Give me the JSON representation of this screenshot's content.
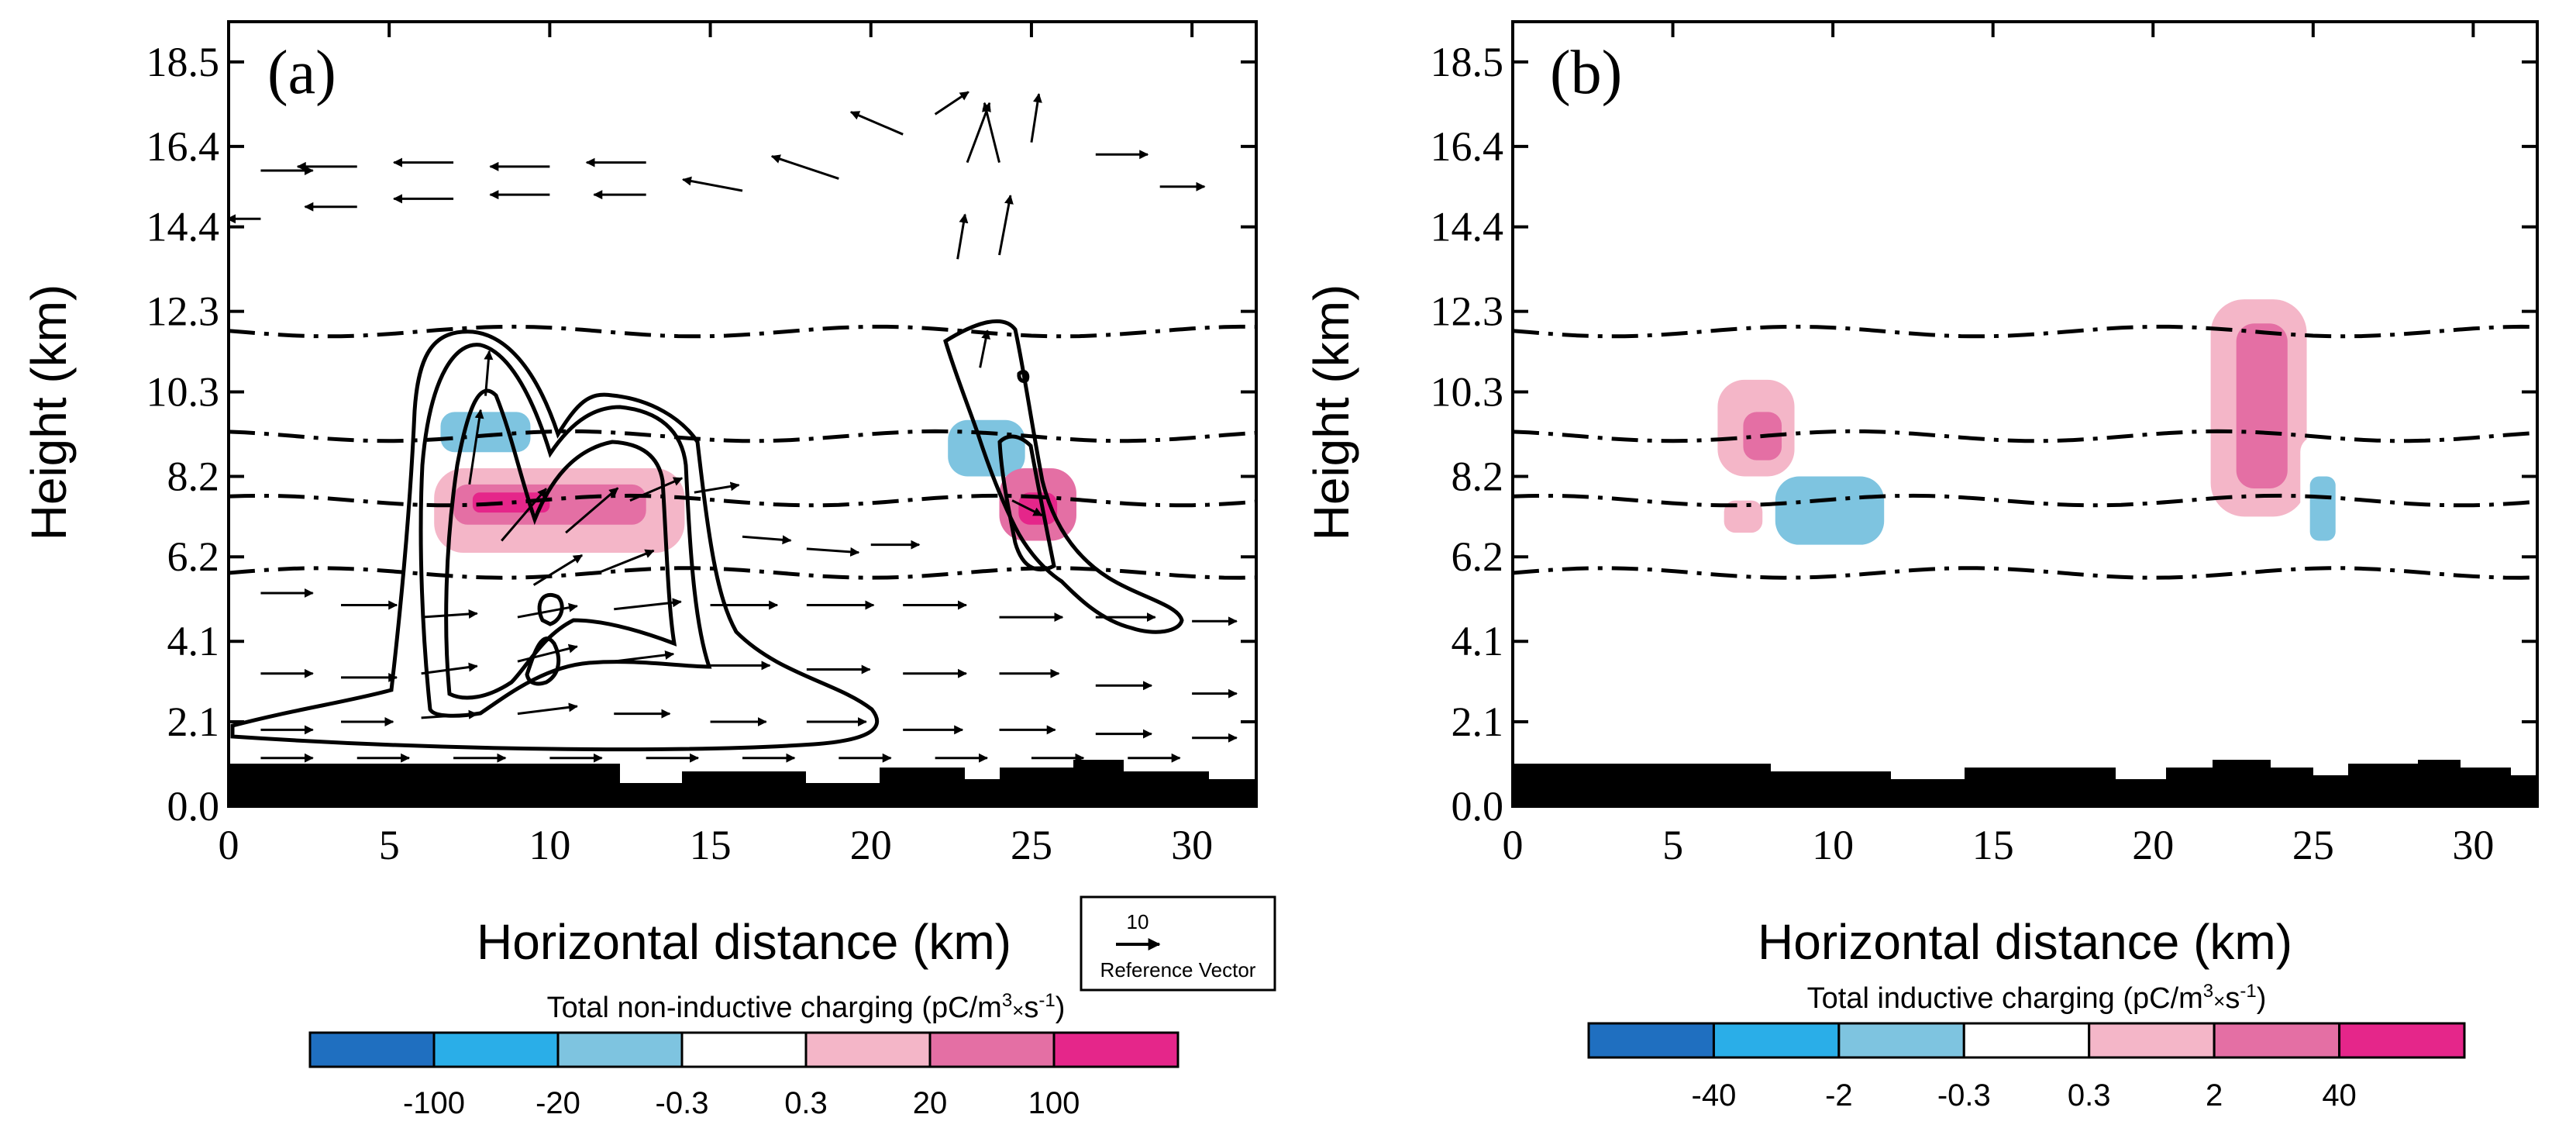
{
  "chart_data": [
    {
      "type": "contour",
      "panel_label": "(a)",
      "xlabel": "Horizontal distance (km)",
      "ylabel": "Height (km)",
      "xlim": [
        0,
        32
      ],
      "ylim": [
        0,
        19.5
      ],
      "x_ticks": [
        0,
        5,
        10,
        15,
        20,
        25,
        30
      ],
      "y_ticks": [
        0.0,
        2.1,
        4.1,
        6.2,
        8.2,
        10.3,
        12.3,
        14.4,
        16.4,
        18.5
      ],
      "y_tick_labels": [
        "0.0",
        "2.1",
        "4.1",
        "6.2",
        "8.2",
        "10.3",
        "12.3",
        "14.4",
        "16.4",
        "18.5"
      ],
      "isotherm_heights_km": [
        5.8,
        7.6,
        9.2,
        11.8
      ],
      "colorbar": {
        "title": "Total non-inductive charging  (pC/m",
        "title_sup1": "3",
        "title_mid": "×",
        "title_s": "s",
        "title_sup2": "-1",
        "title_end": ")",
        "levels": [
          "-100",
          "-20",
          "-0.3",
          "0.3",
          "20",
          "100"
        ],
        "colors": [
          "#1f6fc0",
          "#2aaee8",
          "#7ec4e0",
          "#ffffff",
          "#f4b6c8",
          "#e46fa4",
          "#e5268a"
        ]
      },
      "reference_vector": {
        "value": "10",
        "label": "Reference Vector"
      },
      "charging_regions": [
        {
          "x": [
            6.3,
            13.8
          ],
          "y": [
            8.6,
            10.9
          ],
          "value": -0.3
        },
        {
          "x": [
            6.6,
            9.4
          ],
          "y": [
            8.8,
            9.8
          ],
          "value": -20
        },
        {
          "x": [
            6.4,
            14.2
          ],
          "y": [
            6.3,
            8.4
          ],
          "value": 0.3
        },
        {
          "x": [
            7.0,
            13.0
          ],
          "y": [
            7.0,
            8.0
          ],
          "value": 20
        },
        {
          "x": [
            7.6,
            10.0
          ],
          "y": [
            7.3,
            7.8
          ],
          "value": 100
        },
        {
          "x": [
            21.5,
            25.3
          ],
          "y": [
            7.5,
            10.0
          ],
          "value": -0.3
        },
        {
          "x": [
            22.4,
            24.8
          ],
          "y": [
            8.2,
            9.6
          ],
          "value": -20
        },
        {
          "x": [
            24.0,
            26.4
          ],
          "y": [
            6.6,
            8.4
          ],
          "value": 20
        },
        {
          "x": [
            24.6,
            25.8
          ],
          "y": [
            7.0,
            7.8
          ],
          "value": 100
        }
      ],
      "wind_vectors": [
        [
          1,
          15.8,
          1.4,
          0
        ],
        [
          4,
          15.9,
          -1.6,
          0
        ],
        [
          7,
          16.0,
          -1.6,
          0
        ],
        [
          10,
          15.9,
          -1.6,
          0
        ],
        [
          13,
          16.0,
          -1.6,
          0
        ],
        [
          1,
          14.6,
          -0.9,
          0
        ],
        [
          4,
          14.9,
          -1.4,
          0
        ],
        [
          7,
          15.1,
          -1.6,
          0
        ],
        [
          10,
          15.2,
          -1.6,
          0
        ],
        [
          13,
          15.2,
          -1.4,
          0
        ],
        [
          16,
          15.3,
          -1.6,
          0.3
        ],
        [
          19,
          15.6,
          -1.8,
          0.6
        ],
        [
          21,
          16.7,
          -1.4,
          0.6
        ],
        [
          22,
          17.2,
          0.9,
          0.6
        ],
        [
          23,
          16.0,
          0.6,
          1.6
        ],
        [
          24,
          16.0,
          -0.4,
          1.6
        ],
        [
          25,
          16.5,
          0.2,
          1.3
        ],
        [
          27,
          16.2,
          1.4,
          0
        ],
        [
          29,
          15.4,
          1.2,
          0
        ],
        [
          22.7,
          13.6,
          0.2,
          1.2
        ],
        [
          24.0,
          13.7,
          0.3,
          1.6
        ],
        [
          1,
          5.3,
          1.4,
          0
        ],
        [
          3.5,
          5.0,
          1.5,
          0
        ],
        [
          6,
          4.7,
          1.5,
          0.1
        ],
        [
          9,
          4.7,
          1.6,
          0.3
        ],
        [
          12,
          4.9,
          1.8,
          0.2
        ],
        [
          15,
          5.0,
          1.8,
          0
        ],
        [
          18,
          5.0,
          1.8,
          0
        ],
        [
          21,
          5.0,
          1.7,
          0
        ],
        [
          24,
          4.7,
          1.7,
          0
        ],
        [
          27,
          4.7,
          1.6,
          0
        ],
        [
          30,
          4.6,
          1.2,
          0
        ],
        [
          1,
          3.3,
          1.4,
          0
        ],
        [
          3.5,
          3.2,
          1.5,
          0
        ],
        [
          6,
          3.3,
          1.5,
          0.2
        ],
        [
          9,
          3.6,
          1.6,
          0.4
        ],
        [
          12,
          3.6,
          1.6,
          0.2
        ],
        [
          15,
          3.5,
          1.6,
          0
        ],
        [
          18,
          3.4,
          1.7,
          0
        ],
        [
          21,
          3.3,
          1.7,
          0
        ],
        [
          24,
          3.3,
          1.6,
          0
        ],
        [
          27,
          3.0,
          1.5,
          0
        ],
        [
          30,
          2.8,
          1.2,
          0
        ],
        [
          1,
          1.9,
          1.4,
          0
        ],
        [
          3.5,
          2.1,
          1.4,
          0
        ],
        [
          6,
          2.2,
          1.5,
          0.1
        ],
        [
          9,
          2.3,
          1.6,
          0.2
        ],
        [
          12,
          2.3,
          1.5,
          0
        ],
        [
          15,
          2.1,
          1.5,
          0
        ],
        [
          18,
          2.1,
          1.6,
          0
        ],
        [
          21,
          1.9,
          1.6,
          0
        ],
        [
          24,
          1.9,
          1.5,
          0
        ],
        [
          27,
          1.8,
          1.5,
          0
        ],
        [
          30,
          1.7,
          1.2,
          0
        ],
        [
          1,
          1.2,
          1.4,
          0
        ],
        [
          4,
          1.2,
          1.4,
          0
        ],
        [
          7,
          1.2,
          1.4,
          0
        ],
        [
          10,
          1.2,
          1.4,
          0
        ],
        [
          13,
          1.2,
          1.4,
          0
        ],
        [
          16,
          1.2,
          1.4,
          0
        ],
        [
          19,
          1.2,
          1.4,
          0
        ],
        [
          22,
          1.2,
          1.4,
          0
        ],
        [
          25,
          1.2,
          1.4,
          0
        ],
        [
          28,
          1.2,
          1.4,
          0
        ],
        [
          7.5,
          8.0,
          0.3,
          2.0
        ],
        [
          8.5,
          6.6,
          1.2,
          1.4
        ],
        [
          10.5,
          6.8,
          1.4,
          1.2
        ],
        [
          12.5,
          7.6,
          1.4,
          0.6
        ],
        [
          14.5,
          7.8,
          1.2,
          0.2
        ],
        [
          16,
          6.7,
          1.3,
          -0.1
        ],
        [
          18,
          6.4,
          1.4,
          -0.1
        ],
        [
          20,
          6.5,
          1.3,
          0
        ],
        [
          8,
          10.2,
          0.1,
          1.2
        ],
        [
          23.4,
          10.9,
          0.2,
          1.0
        ],
        [
          24.4,
          7.6,
          0.8,
          -0.4
        ],
        [
          9.5,
          5.5,
          1.3,
          0.8
        ],
        [
          11.5,
          5.8,
          1.5,
          0.6
        ]
      ]
    },
    {
      "type": "contour",
      "panel_label": "(b)",
      "xlabel": "Horizontal distance (km)",
      "ylabel": "Height (km)",
      "xlim": [
        0,
        32
      ],
      "ylim": [
        0,
        19.5
      ],
      "x_ticks": [
        0,
        5,
        10,
        15,
        20,
        25,
        30
      ],
      "y_ticks": [
        0.0,
        2.1,
        4.1,
        6.2,
        8.2,
        10.3,
        12.3,
        14.4,
        16.4,
        18.5
      ],
      "y_tick_labels": [
        "0.0",
        "2.1",
        "4.1",
        "6.2",
        "8.2",
        "10.3",
        "12.3",
        "14.4",
        "16.4",
        "18.5"
      ],
      "isotherm_heights_km": [
        5.8,
        7.6,
        9.2,
        11.8
      ],
      "colorbar": {
        "title": "Total inductive charging  (pC/m",
        "title_sup1": "3",
        "title_mid": "×",
        "title_s": "s",
        "title_sup2": "-1",
        "title_end": ")",
        "levels": [
          "-40",
          "-2",
          "-0.3",
          "0.3",
          "2",
          "40"
        ],
        "colors": [
          "#1f6fc0",
          "#2aaee8",
          "#7ec4e0",
          "#ffffff",
          "#f4b6c8",
          "#e46fa4",
          "#e5268a"
        ]
      },
      "charging_regions": [
        {
          "x": [
            7.4,
            13.8
          ],
          "y": [
            5.0,
            10.0
          ],
          "value": -0.3
        },
        {
          "x": [
            8.2,
            11.6
          ],
          "y": [
            6.5,
            8.2
          ],
          "value": -2
        },
        {
          "x": [
            6.4,
            8.8
          ],
          "y": [
            8.2,
            10.6
          ],
          "value": 0.3
        },
        {
          "x": [
            7.2,
            8.4
          ],
          "y": [
            8.6,
            9.8
          ],
          "value": 2
        },
        {
          "x": [
            6.6,
            7.8
          ],
          "y": [
            6.8,
            7.6
          ],
          "value": 0.3
        },
        {
          "x": [
            21.8,
            24.8
          ],
          "y": [
            7.2,
            12.6
          ],
          "value": 0.3
        },
        {
          "x": [
            22.6,
            24.2
          ],
          "y": [
            7.9,
            12.0
          ],
          "value": 2
        },
        {
          "x": [
            24.6,
            26.0
          ],
          "y": [
            5.9,
            9.2
          ],
          "value": -0.3
        },
        {
          "x": [
            24.9,
            25.7
          ],
          "y": [
            6.6,
            8.2
          ],
          "value": -2
        }
      ]
    }
  ]
}
